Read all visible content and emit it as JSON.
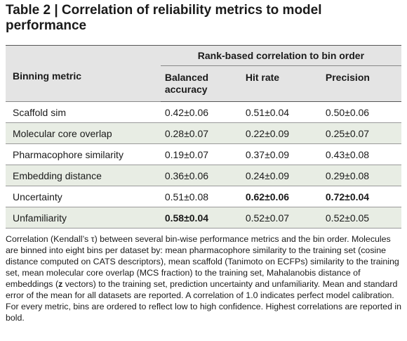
{
  "title": "Table 2 | Correlation of reliability metrics to model performance",
  "table": {
    "group_header": "Rank-based correlation to bin order",
    "row_header": "Binning metric",
    "columns": [
      "Balanced accuracy",
      "Hit rate",
      "Precision"
    ],
    "rows": [
      {
        "metric": "Scaffold sim",
        "values": [
          "0.42±0.06",
          "0.51±0.04",
          "0.50±0.06"
        ],
        "bold": [
          false,
          false,
          false
        ]
      },
      {
        "metric": "Molecular core overlap",
        "values": [
          "0.28±0.07",
          "0.22±0.09",
          "0.25±0.07"
        ],
        "bold": [
          false,
          false,
          false
        ]
      },
      {
        "metric": "Pharmacophore similarity",
        "values": [
          "0.19±0.07",
          "0.37±0.09",
          "0.43±0.08"
        ],
        "bold": [
          false,
          false,
          false
        ]
      },
      {
        "metric": "Embedding distance",
        "values": [
          "0.36±0.06",
          "0.24±0.09",
          "0.29±0.08"
        ],
        "bold": [
          false,
          false,
          false
        ]
      },
      {
        "metric": "Uncertainty",
        "values": [
          "0.51±0.08",
          "0.62±0.06",
          "0.72±0.04"
        ],
        "bold": [
          false,
          true,
          true
        ]
      },
      {
        "metric": "Unfamiliarity",
        "values": [
          "0.58±0.04",
          "0.52±0.07",
          "0.52±0.05"
        ],
        "bold": [
          true,
          false,
          false
        ]
      }
    ]
  },
  "caption": [
    {
      "text": "Correlation (Kendall’s τ) between several bin-wise performance metrics and the bin order. Molecules are binned into eight bins per dataset by: mean pharmacophore similarity to the training set (cosine distance computed on CATS descriptors), mean scaffold (Tanimoto on ECFPs) similarity to the training set, mean molecular core overlap (MCS fraction) to the training set, Mahalanobis distance of embeddings (",
      "bold": false
    },
    {
      "text": "z",
      "bold": true
    },
    {
      "text": " vectors) to the training set, prediction uncertainty and unfamiliarity. Mean and standard error of the mean for all datasets are reported. A correlation of 1.0 indicates perfect model calibration. For every metric, bins are ordered to reflect low to high confidence. Highest correlations are reported in bold.",
      "bold": false
    }
  ]
}
